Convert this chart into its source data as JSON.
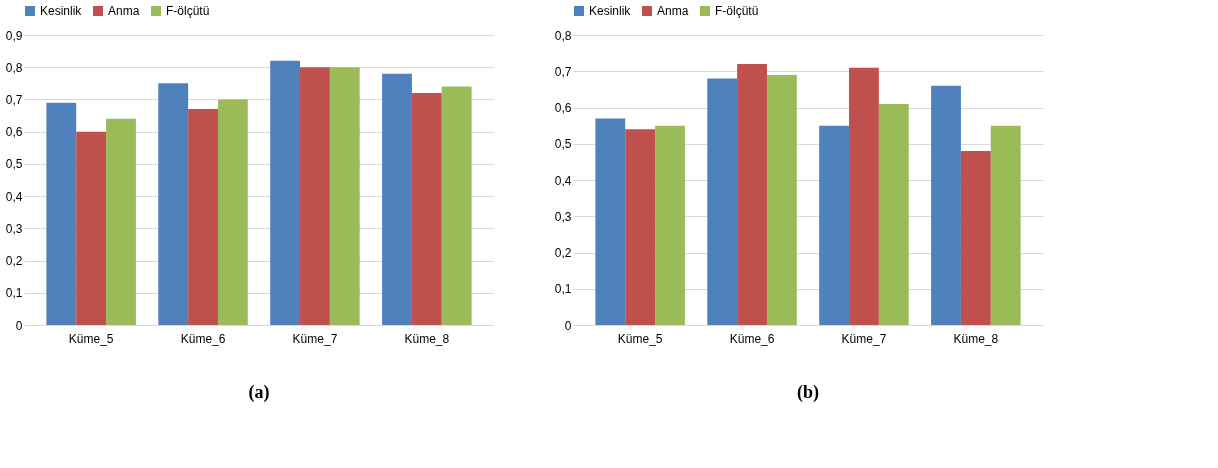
{
  "chart_data": [
    {
      "type": "bar",
      "categories": [
        "Küme_5",
        "Küme_6",
        "Küme_7",
        "Küme_8"
      ],
      "series": [
        {
          "name": "Kesinlik",
          "color": "#4f81bd",
          "values": [
            0.69,
            0.75,
            0.82,
            0.78
          ]
        },
        {
          "name": "Anma",
          "color": "#c0504d",
          "values": [
            0.6,
            0.67,
            0.8,
            0.72
          ]
        },
        {
          "name": "F-ölçütü",
          "color": "#9bbb59",
          "values": [
            0.64,
            0.7,
            0.8,
            0.74
          ]
        }
      ],
      "ylim": [
        0,
        0.9
      ],
      "yticks": [
        {
          "value": 0,
          "label": "0"
        },
        {
          "value": 0.1,
          "label": "0,1"
        },
        {
          "value": 0.2,
          "label": "0,2"
        },
        {
          "value": 0.3,
          "label": "0,3"
        },
        {
          "value": 0.4,
          "label": "0,4"
        },
        {
          "value": 0.5,
          "label": "0,5"
        },
        {
          "value": 0.6,
          "label": "0,6"
        },
        {
          "value": 0.7,
          "label": "0,7"
        },
        {
          "value": 0.8,
          "label": "0,8"
        },
        {
          "value": 0.9,
          "label": "0,9"
        }
      ],
      "grid": "y",
      "legend": "top",
      "annotations": [
        "(a)"
      ]
    },
    {
      "type": "bar",
      "categories": [
        "Küme_5",
        "Küme_6",
        "Küme_7",
        "Küme_8"
      ],
      "series": [
        {
          "name": "Kesinlik",
          "color": "#4f81bd",
          "values": [
            0.57,
            0.68,
            0.55,
            0.66
          ]
        },
        {
          "name": "Anma",
          "color": "#c0504d",
          "values": [
            0.54,
            0.72,
            0.71,
            0.48
          ]
        },
        {
          "name": "F-ölçütü",
          "color": "#9bbb59",
          "values": [
            0.55,
            0.69,
            0.61,
            0.55
          ]
        }
      ],
      "ylim": [
        0,
        0.8
      ],
      "yticks": [
        {
          "value": 0,
          "label": "0"
        },
        {
          "value": 0.1,
          "label": "0,1"
        },
        {
          "value": 0.2,
          "label": "0,2"
        },
        {
          "value": 0.3,
          "label": "0,3"
        },
        {
          "value": 0.4,
          "label": "0,4"
        },
        {
          "value": 0.5,
          "label": "0,5"
        },
        {
          "value": 0.6,
          "label": "0,6"
        },
        {
          "value": 0.7,
          "label": "0,7"
        },
        {
          "value": 0.8,
          "label": "0,8"
        }
      ],
      "grid": "y",
      "legend": "top",
      "annotations": [
        "(b)"
      ]
    }
  ]
}
